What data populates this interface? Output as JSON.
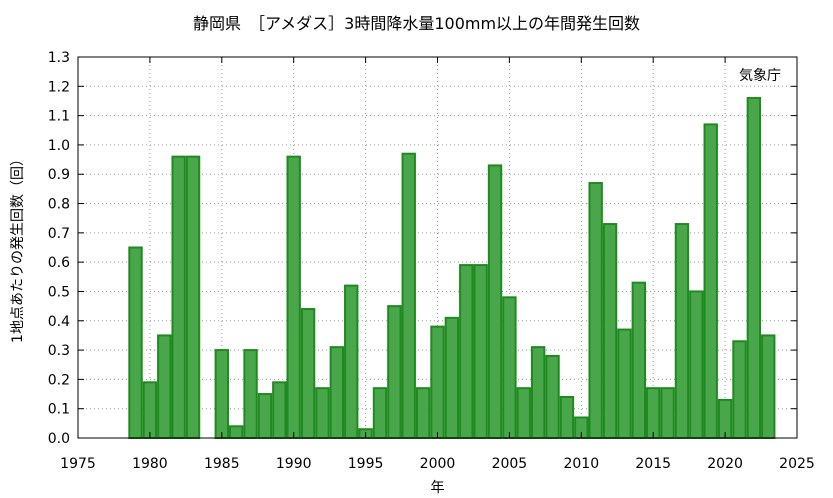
{
  "chart_data": {
    "type": "bar",
    "title": "静岡県　［アメダス］3時間降水量100mm以上の年間発生回数",
    "xlabel": "年",
    "ylabel": "1地点あたりの発生回数（回）",
    "annotation": "気象庁",
    "xlim": [
      1975,
      2025
    ],
    "ylim": [
      0.0,
      1.3
    ],
    "x_ticks": [
      "1975",
      "1980",
      "1985",
      "1990",
      "1995",
      "2000",
      "2005",
      "2010",
      "2015",
      "2020",
      "2025"
    ],
    "y_ticks": [
      "0.0",
      "0.1",
      "0.2",
      "0.3",
      "0.4",
      "0.5",
      "0.6",
      "0.7",
      "0.8",
      "0.9",
      "1.0",
      "1.1",
      "1.2",
      "1.3"
    ],
    "grid": true,
    "bar_color": "#4aa64a",
    "bar_edge_color": "#1f8a1f",
    "x": [
      1979,
      1980,
      1981,
      1982,
      1983,
      1984,
      1985,
      1986,
      1987,
      1988,
      1989,
      1990,
      1991,
      1992,
      1993,
      1994,
      1995,
      1996,
      1997,
      1998,
      1999,
      2000,
      2001,
      2002,
      2003,
      2004,
      2005,
      2006,
      2007,
      2008,
      2009,
      2010,
      2011,
      2012,
      2013,
      2014,
      2015,
      2016,
      2017,
      2018,
      2019,
      2020,
      2021,
      2022,
      2023
    ],
    "values": [
      0.65,
      0.19,
      0.35,
      0.96,
      0.96,
      0.0,
      0.3,
      0.04,
      0.3,
      0.15,
      0.19,
      0.96,
      0.44,
      0.17,
      0.31,
      0.52,
      0.03,
      0.17,
      0.45,
      0.97,
      0.17,
      0.38,
      0.41,
      0.59,
      0.59,
      0.93,
      0.48,
      0.17,
      0.31,
      0.28,
      0.14,
      0.07,
      0.87,
      0.73,
      0.37,
      0.53,
      0.17,
      0.17,
      0.73,
      0.5,
      1.07,
      0.13,
      0.33,
      1.16,
      0.35
    ]
  }
}
